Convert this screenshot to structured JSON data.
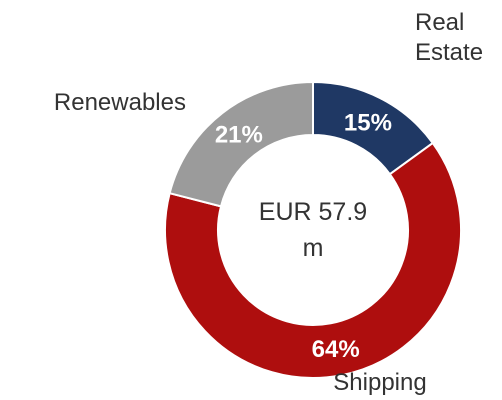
{
  "chart_data": {
    "type": "donut",
    "categories": [
      "Real Estate",
      "Shipping",
      "Renewables"
    ],
    "values": [
      15,
      64,
      21
    ],
    "value_labels": [
      "15%",
      "64%",
      "21%"
    ],
    "colors": [
      "#1f3864",
      "#ae0e0e",
      "#9b9b9b"
    ],
    "center_label": "EUR 57.9 m"
  }
}
